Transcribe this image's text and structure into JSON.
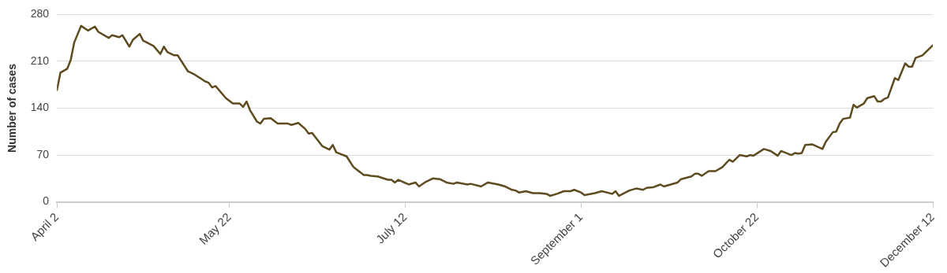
{
  "chart_data": {
    "type": "line",
    "ylabel": "Number of cases",
    "xlim": [
      "--04-02",
      "--12-12"
    ],
    "xticks": [
      {
        "value": "--04-02",
        "label": "April 2"
      },
      {
        "value": "--05-22",
        "label": "May 22"
      },
      {
        "value": "--07-12",
        "label": "July 12"
      },
      {
        "value": "--09-01",
        "label": "September 1"
      },
      {
        "value": "--10-22",
        "label": "October 22"
      },
      {
        "value": "--12-12",
        "label": "December 12"
      }
    ],
    "ylim": [
      0,
      280
    ],
    "yticks": [
      0,
      70,
      140,
      210,
      280
    ],
    "grid": "y",
    "marker": "none",
    "line_style": "solid",
    "x": [
      "--04-02",
      "--04-03",
      "--04-05",
      "--04-06",
      "--04-07",
      "--04-09",
      "--04-11",
      "--04-13",
      "--04-14",
      "--04-17",
      "--04-18",
      "--04-20",
      "--04-21",
      "--04-23",
      "--04-24",
      "--04-26",
      "--04-27",
      "--04-30",
      "--05-02",
      "--05-03",
      "--05-04",
      "--05-06",
      "--05-07",
      "--05-10",
      "--05-12",
      "--05-15",
      "--05-16",
      "--05-17",
      "--05-18",
      "--05-21",
      "--05-23",
      "--05-25",
      "--05-26",
      "--05-27",
      "--05-28",
      "--05-30",
      "--05-31",
      "--06-01",
      "--06-03",
      "--06-05",
      "--06-08",
      "--06-09",
      "--06-11",
      "--06-13",
      "--06-14",
      "--06-15",
      "--06-18",
      "--06-20",
      "--06-21",
      "--06-22",
      "--06-25",
      "--06-27",
      "--06-28",
      "--06-30",
      "--07-01",
      "--07-02",
      "--07-04",
      "--07-07",
      "--07-08",
      "--07-09",
      "--07-10",
      "--07-13",
      "--07-15",
      "--07-16",
      "--07-18",
      "--07-20",
      "--07-22",
      "--07-24",
      "--07-26",
      "--07-27",
      "--07-30",
      "--07-31",
      "--08-03",
      "--08-05",
      "--08-08",
      "--08-10",
      "--08-12",
      "--08-13",
      "--08-14",
      "--08-16",
      "--08-18",
      "--08-20",
      "--08-22",
      "--08-23",
      "--08-25",
      "--08-27",
      "--08-29",
      "--08-30",
      "--09-01",
      "--09-02",
      "--09-05",
      "--09-07",
      "--09-10",
      "--09-11",
      "--09-12",
      "--09-15",
      "--09-17",
      "--09-19",
      "--09-20",
      "--09-22",
      "--09-24",
      "--09-25",
      "--09-27",
      "--09-29",
      "--09-30",
      "--10-03",
      "--10-04",
      "--10-05",
      "--10-06",
      "--10-08",
      "--10-10",
      "--10-12",
      "--10-14",
      "--10-15",
      "--10-17",
      "--10-19",
      "--10-20",
      "--10-21",
      "--10-24",
      "--10-26",
      "--10-28",
      "--10-29",
      "--11-01",
      "--11-02",
      "--11-03",
      "--11-04",
      "--11-05",
      "--11-07",
      "--11-10",
      "--11-11",
      "--11-13",
      "--11-14",
      "--11-15",
      "--11-16",
      "--11-18",
      "--11-19",
      "--11-20",
      "--11-22",
      "--11-23",
      "--11-25",
      "--11-26",
      "--11-27",
      "--11-28",
      "--11-29",
      "--12-01",
      "--12-02",
      "--12-04",
      "--12-05",
      "--12-06",
      "--12-07",
      "--12-09",
      "--12-11",
      "--12-12"
    ],
    "series": [
      {
        "color": "#5e4b1f",
        "values": [
          167,
          193,
          199,
          212,
          238,
          263,
          256,
          262,
          254,
          245,
          249,
          246,
          249,
          232,
          242,
          251,
          241,
          233,
          221,
          232,
          224,
          219,
          219,
          195,
          190,
          180,
          178,
          171,
          173,
          155,
          147,
          147,
          142,
          150,
          137,
          120,
          117,
          124,
          125,
          117,
          117,
          115,
          118,
          109,
          102,
          103,
          83,
          78,
          85,
          74,
          68,
          52,
          48,
          40,
          40,
          39,
          38,
          33,
          33,
          29,
          33,
          26,
          29,
          23,
          30,
          35,
          34,
          29,
          27,
          29,
          26,
          27,
          23,
          29,
          26,
          23,
          18,
          17,
          14,
          16,
          13,
          13,
          12,
          9,
          12,
          16,
          16,
          18,
          14,
          10,
          13,
          16,
          12,
          16,
          9,
          17,
          20,
          18,
          21,
          22,
          26,
          23,
          26,
          29,
          34,
          38,
          42,
          42,
          39,
          46,
          46,
          52,
          63,
          60,
          70,
          68,
          70,
          69,
          79,
          76,
          69,
          76,
          70,
          73,
          72,
          73,
          85,
          86,
          79,
          90,
          104,
          105,
          117,
          124,
          126,
          145,
          141,
          147,
          155,
          158,
          150,
          150,
          154,
          156,
          185,
          182,
          207,
          202,
          202,
          215,
          219,
          229,
          234
        ]
      }
    ]
  }
}
